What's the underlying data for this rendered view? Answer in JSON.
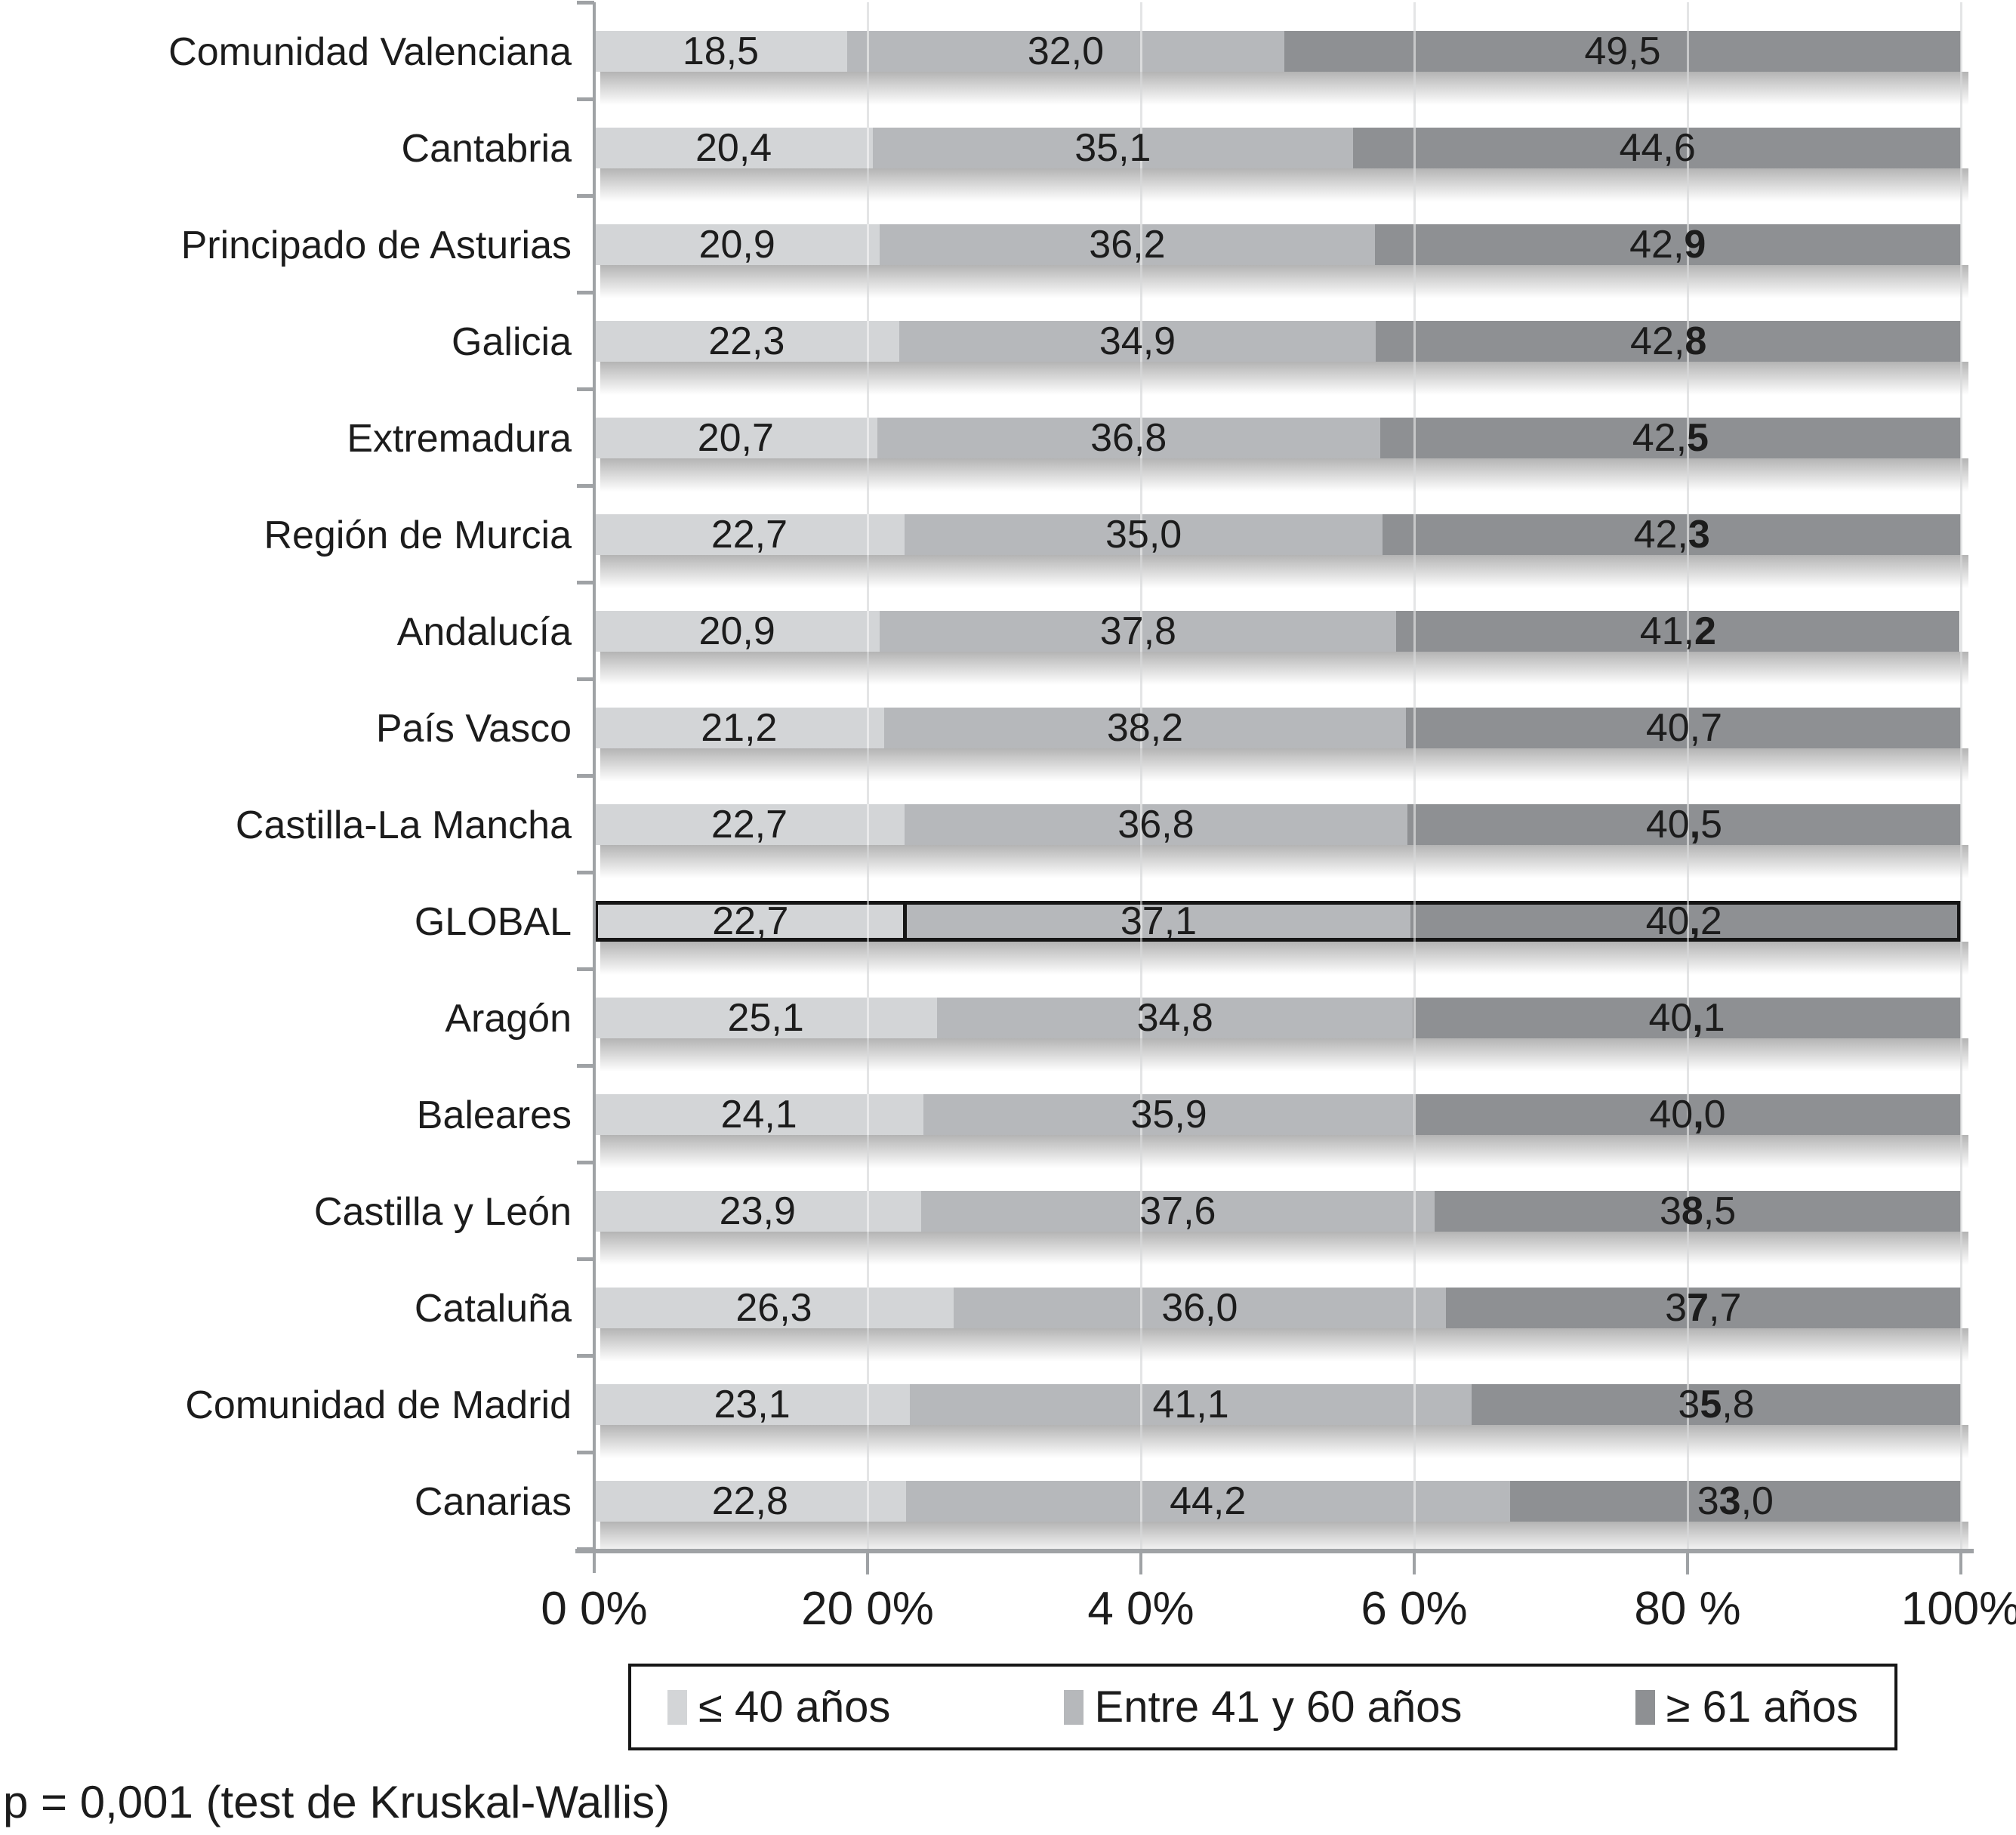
{
  "figure": {
    "footnote": "p = 0,001 (test de Kruskal-Wallis)"
  },
  "chart_data": {
    "type": "bar",
    "orientation": "horizontal",
    "stacked": true,
    "unit": "percent",
    "title": "",
    "categories": [
      "Comunidad Valenciana",
      "Cantabria",
      "Principado de Asturias",
      "Galicia",
      "Extremadura",
      "Región de Murcia",
      "Andalucía",
      "País Vasco",
      "Castilla-La Mancha",
      "GLOBAL",
      "Aragón",
      "Baleares",
      "Castilla y León",
      "Cataluña",
      "Comunidad de Madrid",
      "Canarias"
    ],
    "highlighted_category": "GLOBAL",
    "series": [
      {
        "name": "≤ 40 años",
        "color": "#d3d5d7",
        "values": [
          18.5,
          20.4,
          20.9,
          22.3,
          20.7,
          22.7,
          20.9,
          21.2,
          22.7,
          22.7,
          25.1,
          24.1,
          23.9,
          26.3,
          23.1,
          22.8
        ]
      },
      {
        "name": "Entre 41 y 60 años",
        "color": "#b6b8bb",
        "values": [
          32.0,
          35.1,
          36.2,
          34.9,
          36.8,
          35.0,
          37.8,
          38.2,
          36.8,
          37.1,
          34.8,
          35.9,
          37.6,
          36.0,
          41.1,
          44.2
        ]
      },
      {
        "name": "≥ 61 años",
        "color": "#8e9093",
        "values": [
          49.5,
          44.6,
          42.9,
          42.8,
          42.5,
          42.3,
          41.2,
          40.7,
          40.5,
          40.2,
          40.1,
          40.0,
          38.5,
          37.7,
          35.8,
          33.0
        ]
      }
    ],
    "value_labels": [
      [
        "18,5",
        "32,0",
        "49,5"
      ],
      [
        "20,4",
        "35,1",
        "44,6"
      ],
      [
        "20,9",
        "36,2",
        "42,9"
      ],
      [
        "22,3",
        "34,9",
        "42,8"
      ],
      [
        "20,7",
        "36,8",
        "42,5"
      ],
      [
        "22,7",
        "35,0",
        "42,3"
      ],
      [
        "20,9",
        "37,8",
        "41,2"
      ],
      [
        "21,2",
        "38,2",
        "40,7"
      ],
      [
        "22,7",
        "36,8",
        "40,5"
      ],
      [
        "22,7",
        "37,1",
        "40,2"
      ],
      [
        "25,1",
        "34,8",
        "40,1"
      ],
      [
        "24,1",
        "35,9",
        "40,0"
      ],
      [
        "23,9",
        "37,6",
        "38,5"
      ],
      [
        "26,3",
        "36,0",
        "37,7"
      ],
      [
        "23,1",
        "41,1",
        "35,8"
      ],
      [
        "22,8",
        "44,2",
        "33,0"
      ]
    ],
    "series3_bold_char_index": [
      -1,
      -1,
      3,
      3,
      3,
      3,
      3,
      -1,
      2,
      2,
      2,
      2,
      1,
      1,
      1,
      1
    ],
    "x_axis": {
      "range": [
        0,
        100
      ],
      "gridline_step": 20,
      "grid": true,
      "tick_labels": [
        "0 0%",
        "20 0%",
        "4 0%",
        "6 0%",
        "80 %",
        "100%"
      ]
    },
    "legend": {
      "position": "bottom",
      "entries": [
        "≤ 40 años",
        "Entre 41 y 60 años",
        "≥ 61 años"
      ]
    },
    "colors": {
      "series1": "#d3d5d7",
      "series2": "#b6b8bb",
      "series3": "#8e9093",
      "grid": "#c8cacc",
      "axis": "#9fa2a5",
      "text": "#1c1c1c",
      "highlight_border": "#161616"
    }
  }
}
